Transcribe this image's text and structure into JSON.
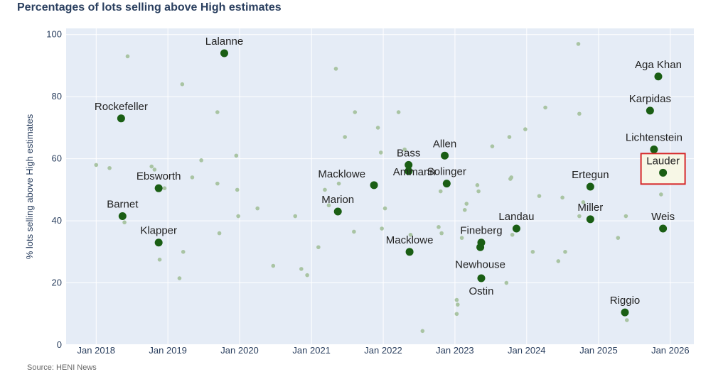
{
  "page": {
    "title": "Percentages of lots selling above High estimates",
    "source": "Source: HENI News"
  },
  "chart_data": {
    "type": "scatter",
    "title": "Percentages of lots selling above High estimates",
    "xlabel": "",
    "ylabel": "% lots selling above High estimates",
    "xlim": [
      "2017-08-01",
      "2026-05-01"
    ],
    "ylim": [
      0,
      102
    ],
    "y_ticks": [
      0,
      20,
      40,
      60,
      80,
      100
    ],
    "x_ticks": [
      {
        "date": "2018-01-01",
        "label": "Jan 2018"
      },
      {
        "date": "2019-01-01",
        "label": "Jan 2019"
      },
      {
        "date": "2020-01-01",
        "label": "Jan 2020"
      },
      {
        "date": "2021-01-01",
        "label": "Jan 2021"
      },
      {
        "date": "2022-01-01",
        "label": "Jan 2022"
      },
      {
        "date": "2023-01-01",
        "label": "Jan 2023"
      },
      {
        "date": "2024-01-01",
        "label": "Jan 2024"
      },
      {
        "date": "2025-01-01",
        "label": "Jan 2025"
      },
      {
        "date": "2026-01-01",
        "label": "Jan 2026"
      }
    ],
    "grid": true,
    "colors": {
      "highlight": "#1a5e14",
      "background": "#e5ecf6",
      "faded": "#a9c4a3",
      "box_fill": "#f7f7e6",
      "box_stroke": "#d62728"
    },
    "highlighted": [
      {
        "name": "Rockefeller",
        "x": "2018-05-08",
        "y": 73
      },
      {
        "name": "Lalanne",
        "x": "2019-10-15",
        "y": 94
      },
      {
        "name": "Ebsworth",
        "x": "2018-11-15",
        "y": 50.5
      },
      {
        "name": "Barnet",
        "x": "2018-05-15",
        "y": 41.5
      },
      {
        "name": "Klapper",
        "x": "2018-11-15",
        "y": 33
      },
      {
        "name": "Marion",
        "x": "2021-05-15",
        "y": 43
      },
      {
        "name": "Macklowe",
        "x": "2021-11-15",
        "y": 51.5
      },
      {
        "name": "Bass",
        "x": "2022-05-10",
        "y": 58
      },
      {
        "name": "Ammann",
        "x": "2022-05-10",
        "y": 56
      },
      {
        "name": "Allen",
        "x": "2022-11-10",
        "y": 61
      },
      {
        "name": "Solinger",
        "x": "2022-11-20",
        "y": 52
      },
      {
        "name": "Macklowe",
        "x": "2022-05-15",
        "y": 30
      },
      {
        "name": "Fineberg",
        "x": "2023-05-15",
        "y": 33
      },
      {
        "name": "Newhouse",
        "x": "2023-05-10",
        "y": 31.5
      },
      {
        "name": "Ostin",
        "x": "2023-05-15",
        "y": 21.5
      },
      {
        "name": "Landau",
        "x": "2023-11-10",
        "y": 37.5
      },
      {
        "name": "Ertegun",
        "x": "2024-11-20",
        "y": 51
      },
      {
        "name": "Miller",
        "x": "2024-11-20",
        "y": 40.5
      },
      {
        "name": "Aga Khan",
        "x": "2025-11-01",
        "y": 86.5
      },
      {
        "name": "Karpidas",
        "x": "2025-09-20",
        "y": 75.5
      },
      {
        "name": "Lichtenstein",
        "x": "2025-10-10",
        "y": 63
      },
      {
        "name": "Lauder",
        "x": "2025-11-25",
        "y": 55.5
      },
      {
        "name": "Weis",
        "x": "2025-11-25",
        "y": 37.5
      },
      {
        "name": "Riggio",
        "x": "2025-05-15",
        "y": 10.5
      }
    ],
    "boxed": "Lauder",
    "background_points": [
      {
        "x": "2018-01-01",
        "y": 58
      },
      {
        "x": "2018-03-10",
        "y": 57
      },
      {
        "x": "2018-06-10",
        "y": 93
      },
      {
        "x": "2018-05-25",
        "y": 39.5
      },
      {
        "x": "2018-10-10",
        "y": 57.5
      },
      {
        "x": "2018-10-25",
        "y": 56.5
      },
      {
        "x": "2018-12-15",
        "y": 50.5
      },
      {
        "x": "2018-11-20",
        "y": 27.5
      },
      {
        "x": "2019-03-01",
        "y": 21.5
      },
      {
        "x": "2019-03-20",
        "y": 30
      },
      {
        "x": "2019-03-15",
        "y": 84
      },
      {
        "x": "2019-05-05",
        "y": 54
      },
      {
        "x": "2019-06-20",
        "y": 59.5
      },
      {
        "x": "2019-09-10",
        "y": 75
      },
      {
        "x": "2019-09-10",
        "y": 52
      },
      {
        "x": "2019-09-20",
        "y": 36
      },
      {
        "x": "2019-12-15",
        "y": 61
      },
      {
        "x": "2019-12-20",
        "y": 50
      },
      {
        "x": "2019-12-25",
        "y": 41.5
      },
      {
        "x": "2020-04-01",
        "y": 44
      },
      {
        "x": "2020-06-20",
        "y": 25.5
      },
      {
        "x": "2020-10-10",
        "y": 41.5
      },
      {
        "x": "2020-11-10",
        "y": 24.5
      },
      {
        "x": "2020-12-10",
        "y": 22.5
      },
      {
        "x": "2021-02-05",
        "y": 31.5
      },
      {
        "x": "2021-03-10",
        "y": 50
      },
      {
        "x": "2021-03-30",
        "y": 45
      },
      {
        "x": "2021-05-05",
        "y": 89
      },
      {
        "x": "2021-06-20",
        "y": 67
      },
      {
        "x": "2021-08-10",
        "y": 75
      },
      {
        "x": "2021-08-05",
        "y": 36.5
      },
      {
        "x": "2021-05-20",
        "y": 52
      },
      {
        "x": "2021-12-05",
        "y": 70
      },
      {
        "x": "2021-12-20",
        "y": 62
      },
      {
        "x": "2021-12-25",
        "y": 37.5
      },
      {
        "x": "2022-01-10",
        "y": 44
      },
      {
        "x": "2022-03-20",
        "y": 75
      },
      {
        "x": "2022-04-20",
        "y": 63
      },
      {
        "x": "2022-05-20",
        "y": 35.5
      },
      {
        "x": "2022-07-20",
        "y": 4.5
      },
      {
        "x": "2022-10-20",
        "y": 49.5
      },
      {
        "x": "2022-10-10",
        "y": 38
      },
      {
        "x": "2022-10-25",
        "y": 36
      },
      {
        "x": "2023-01-10",
        "y": 14.5
      },
      {
        "x": "2023-01-15",
        "y": 13
      },
      {
        "x": "2023-01-10",
        "y": 10
      },
      {
        "x": "2023-03-01",
        "y": 45.5
      },
      {
        "x": "2023-02-20",
        "y": 43.5
      },
      {
        "x": "2023-02-05",
        "y": 34.5
      },
      {
        "x": "2023-04-25",
        "y": 51.5
      },
      {
        "x": "2023-05-01",
        "y": 49.5
      },
      {
        "x": "2023-07-10",
        "y": 64
      },
      {
        "x": "2023-10-05",
        "y": 67
      },
      {
        "x": "2023-10-15",
        "y": 54
      },
      {
        "x": "2023-10-10",
        "y": 53.5
      },
      {
        "x": "2023-10-20",
        "y": 35.5
      },
      {
        "x": "2023-09-20",
        "y": 20
      },
      {
        "x": "2023-12-25",
        "y": 69.5
      },
      {
        "x": "2024-02-01",
        "y": 30
      },
      {
        "x": "2024-03-05",
        "y": 48
      },
      {
        "x": "2024-04-05",
        "y": 76.5
      },
      {
        "x": "2024-07-01",
        "y": 47.5
      },
      {
        "x": "2024-06-10",
        "y": 27
      },
      {
        "x": "2024-07-15",
        "y": 30
      },
      {
        "x": "2024-09-20",
        "y": 97
      },
      {
        "x": "2024-09-25",
        "y": 74.5
      },
      {
        "x": "2024-09-25",
        "y": 41.5
      },
      {
        "x": "2024-10-15",
        "y": 46
      },
      {
        "x": "2025-04-10",
        "y": 34.5
      },
      {
        "x": "2025-05-20",
        "y": 41.5
      },
      {
        "x": "2025-05-25",
        "y": 8
      },
      {
        "x": "2025-11-15",
        "y": 48.5
      },
      {
        "x": "2025-11-10",
        "y": 53.5
      }
    ]
  }
}
